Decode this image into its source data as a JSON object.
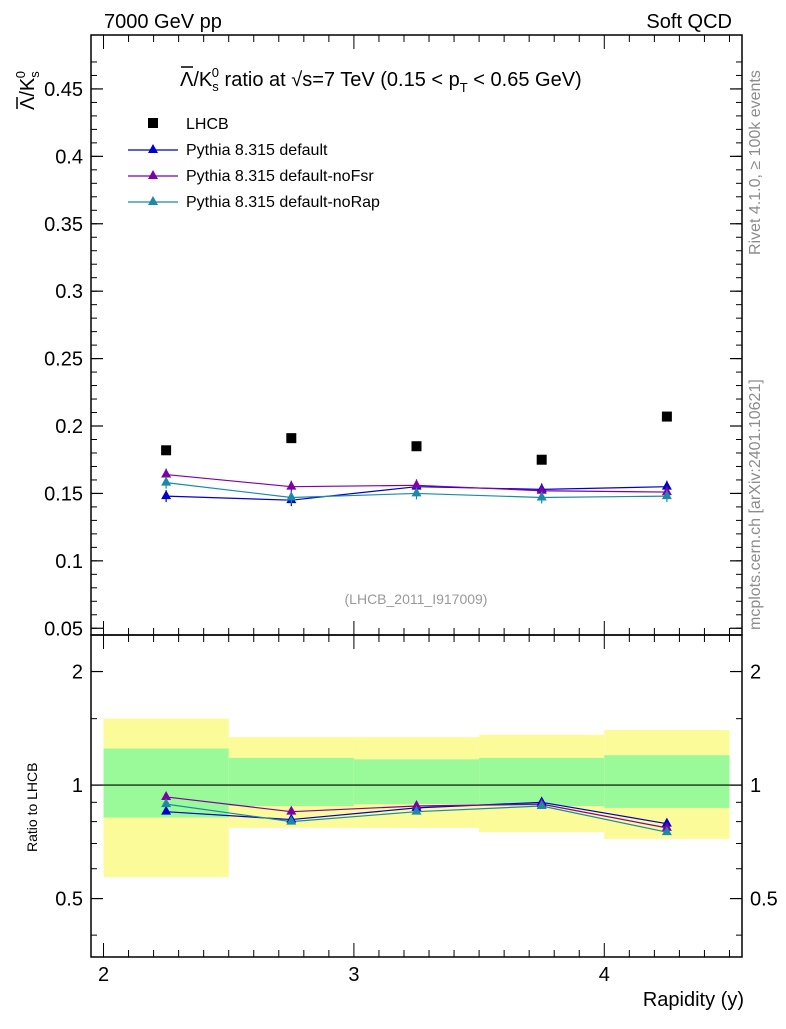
{
  "header": {
    "energy_label": "7000 GeV pp",
    "process_label": "Soft QCD"
  },
  "side_labels": {
    "rivet": "Rivet 4.1.0, ≥ 100k events",
    "mcplots": "mcplots.cern.ch [arXiv:2401.10621]"
  },
  "chart_data": [
    {
      "type": "scatter",
      "panel": "main",
      "title_parts": {
        "ratio": "/K",
        "s": "s",
        "zero": "0",
        "mid": " ratio at ",
        "sqrt": "√",
        "energy": "s=7 TeV (0.15 < p",
        "T": "T",
        "rest": " < 0.65 GeV)"
      },
      "ylabel_parts": {
        "lambda": "Λ",
        "k": "/K",
        "s": "s",
        "zero": "0"
      },
      "analysis_id": "(LHCB_2011_I917009)",
      "xlim": [
        1.95,
        4.55
      ],
      "ylim": [
        0.045,
        0.49
      ],
      "yticks": [
        {
          "value": 0.05,
          "label": "0.05"
        },
        {
          "value": 0.1,
          "label": "0.1"
        },
        {
          "value": 0.15,
          "label": "0.15"
        },
        {
          "value": 0.2,
          "label": "0.2"
        },
        {
          "value": 0.25,
          "label": "0.25"
        },
        {
          "value": 0.3,
          "label": "0.3"
        },
        {
          "value": 0.35,
          "label": "0.35"
        },
        {
          "value": 0.4,
          "label": "0.4"
        },
        {
          "value": 0.45,
          "label": "0.45"
        }
      ],
      "x": [
        2.25,
        2.75,
        3.25,
        3.75,
        4.25
      ],
      "series": [
        {
          "name": "LHCB",
          "kind": "data",
          "color": "#000000",
          "values": [
            0.182,
            0.191,
            0.185,
            0.175,
            0.207
          ]
        },
        {
          "name": "Pythia 8.315 default",
          "kind": "mc",
          "color": "#0000cc",
          "values": [
            0.148,
            0.145,
            0.155,
            0.153,
            0.155
          ]
        },
        {
          "name": "Pythia 8.315 default-noFsr",
          "kind": "mc",
          "color": "#7f00a6",
          "values": [
            0.164,
            0.155,
            0.156,
            0.152,
            0.151
          ]
        },
        {
          "name": "Pythia 8.315 default-noRap",
          "kind": "mc",
          "color": "#1a8aa8",
          "values": [
            0.158,
            0.147,
            0.15,
            0.147,
            0.148
          ]
        }
      ]
    },
    {
      "type": "line",
      "panel": "ratio",
      "ylabel": "Ratio to LHCB",
      "xlabel": "Rapidity (y)",
      "xlim": [
        1.95,
        4.55
      ],
      "ylim": [
        0.35,
        2.5
      ],
      "yscale": "log",
      "yticks": [
        {
          "value": 0.5,
          "label": "0.5"
        },
        {
          "value": 1,
          "label": "1"
        },
        {
          "value": 2,
          "label": "2"
        }
      ],
      "xticks": [
        {
          "value": 2,
          "label": "2"
        },
        {
          "value": 3,
          "label": "3"
        },
        {
          "value": 4,
          "label": "4"
        }
      ],
      "bands": [
        {
          "lo": 2.0,
          "hi": 2.5,
          "y1_lo": 0.82,
          "y1_hi": 1.25,
          "y2_lo": 0.57,
          "y2_hi": 1.5
        },
        {
          "lo": 2.5,
          "hi": 3.0,
          "y1_lo": 0.88,
          "y1_hi": 1.18,
          "y2_lo": 0.77,
          "y2_hi": 1.34
        },
        {
          "lo": 3.0,
          "hi": 3.5,
          "y1_lo": 0.89,
          "y1_hi": 1.17,
          "y2_lo": 0.77,
          "y2_hi": 1.34
        },
        {
          "lo": 3.5,
          "hi": 4.0,
          "y1_lo": 0.88,
          "y1_hi": 1.18,
          "y2_lo": 0.75,
          "y2_hi": 1.36
        },
        {
          "lo": 4.0,
          "hi": 4.5,
          "y1_lo": 0.87,
          "y1_hi": 1.2,
          "y2_lo": 0.72,
          "y2_hi": 1.4
        }
      ],
      "band_colors": {
        "inner": "#9afa9a",
        "outer": "#fbfb99"
      },
      "x": [
        2.25,
        2.75,
        3.25,
        3.75,
        4.25
      ],
      "series": [
        {
          "name": "Pythia 8.315 default",
          "color": "#0000cc",
          "values": [
            0.85,
            0.81,
            0.87,
            0.9,
            0.79
          ]
        },
        {
          "name": "Pythia 8.315 default-noFsr",
          "color": "#7f00a6",
          "values": [
            0.93,
            0.85,
            0.88,
            0.89,
            0.77
          ]
        },
        {
          "name": "Pythia 8.315 default-noRap",
          "color": "#1a8aa8",
          "values": [
            0.89,
            0.8,
            0.85,
            0.88,
            0.75
          ]
        }
      ]
    }
  ]
}
